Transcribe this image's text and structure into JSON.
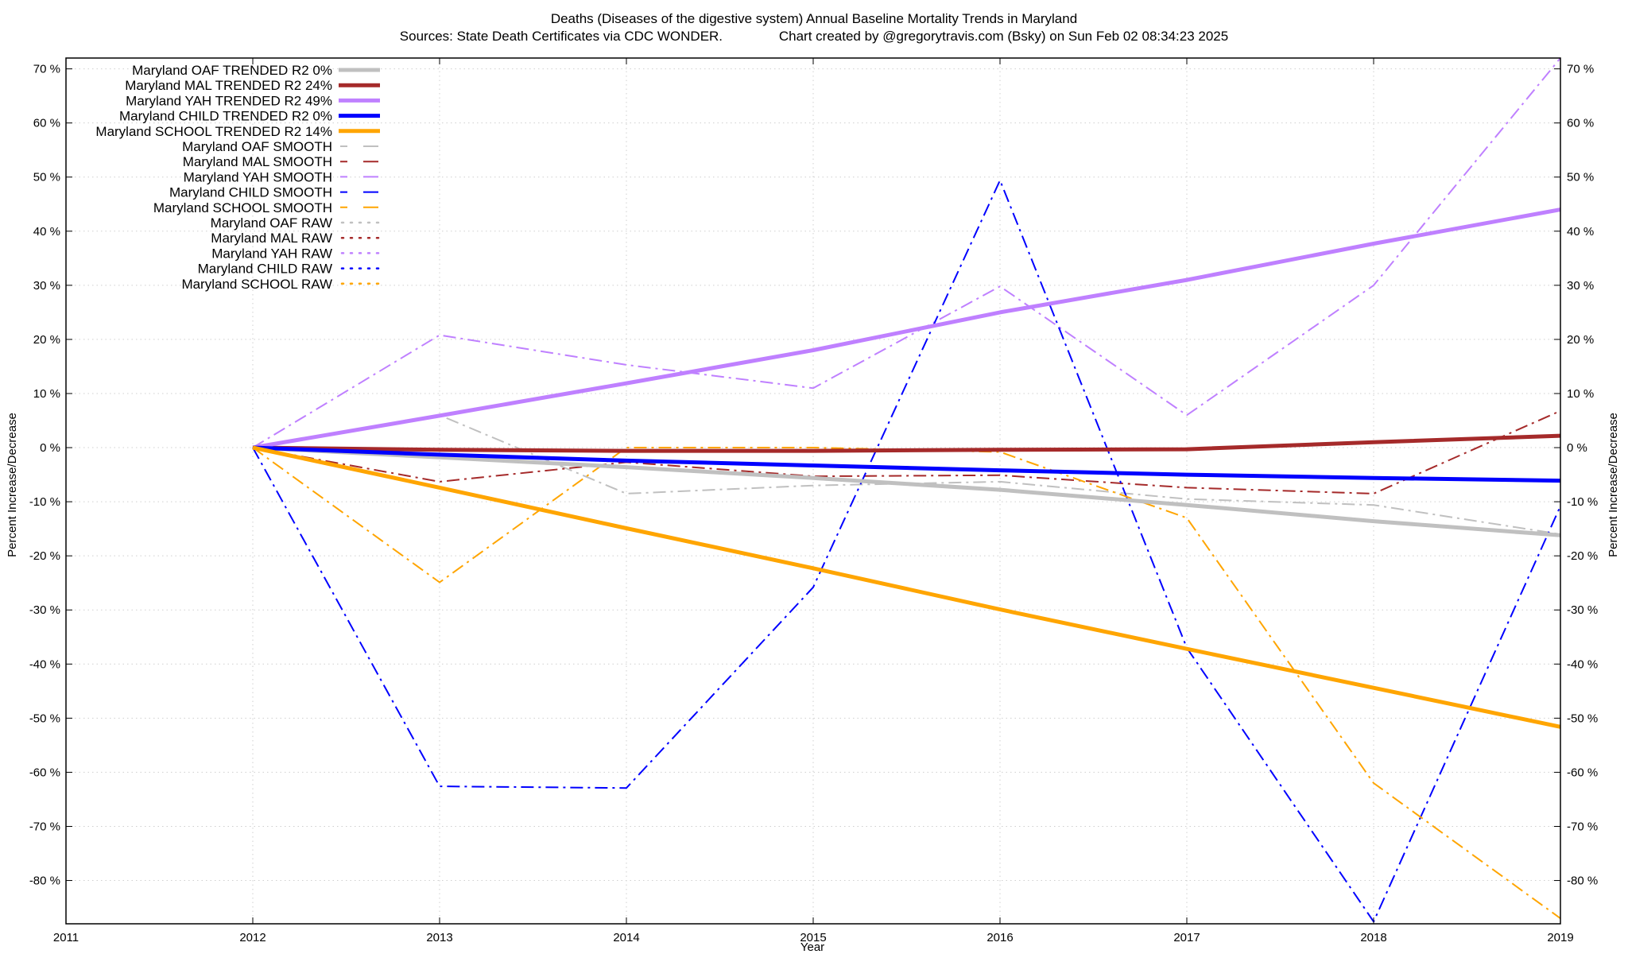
{
  "chart_data": {
    "type": "line",
    "title": "Deaths (Diseases of the digestive system)  Annual Baseline Mortality Trends in Maryland",
    "subtitle": "Sources: State Death Certificates via CDC WONDER.               Chart created by @gregorytravis.com (Bsky) on Sun Feb 02 08:34:23 2025",
    "xlabel": "Year",
    "ylabel": "Percent Increase/Decrease",
    "y2label": "Percent Increase/Decrease",
    "xlim": [
      2011,
      2019
    ],
    "ylim": [
      -88,
      72
    ],
    "x_ticks": [
      2011,
      2012,
      2013,
      2014,
      2015,
      2016,
      2017,
      2018,
      2019
    ],
    "x_tick_labels": [
      "2011",
      "2012",
      "2013",
      "2014",
      "2015",
      "2016",
      "2017",
      "2018",
      "2019"
    ],
    "y_ticks": [
      70,
      60,
      50,
      40,
      30,
      20,
      10,
      0,
      -10,
      -20,
      -30,
      -40,
      -50,
      -60,
      -70,
      -80
    ],
    "y_tick_labels": [
      "70 %",
      "60 %",
      "50 %",
      "40 %",
      "30 %",
      "20 %",
      "10 %",
      "0 %",
      "-10 %",
      "-20 %",
      "-30 %",
      "-40 %",
      "-50 %",
      "-60 %",
      "-70 %",
      "-80 %"
    ],
    "grid": true,
    "legend_position": "top-left",
    "series": [
      {
        "name": "Maryland OAF TRENDED R2  0%",
        "style": "solid",
        "color": "#c0c0c0",
        "x": [
          2012,
          2013,
          2014,
          2015,
          2016,
          2017,
          2018,
          2019
        ],
        "y": [
          0,
          -1.8,
          -3.6,
          -5.6,
          -7.8,
          -10.6,
          -13.6,
          -16.2
        ]
      },
      {
        "name": "Maryland MAL TRENDED R2  24%",
        "style": "solid",
        "color": "#a52a2a",
        "x": [
          2012,
          2013,
          2014,
          2015,
          2016,
          2017,
          2018,
          2019
        ],
        "y": [
          0,
          -0.4,
          -0.6,
          -0.6,
          -0.4,
          -0.3,
          1.0,
          2.2
        ]
      },
      {
        "name": "Maryland YAH TRENDED R2  49%",
        "style": "solid",
        "color": "#bf80ff",
        "x": [
          2012,
          2013,
          2014,
          2015,
          2016,
          2017,
          2018,
          2019
        ],
        "y": [
          0,
          5.9,
          11.9,
          18.0,
          25.0,
          31.0,
          37.7,
          44.0
        ]
      },
      {
        "name": "Maryland CHILD TRENDED R2  0%",
        "style": "solid",
        "color": "#0000ff",
        "x": [
          2012,
          2013,
          2014,
          2015,
          2016,
          2017,
          2018,
          2019
        ],
        "y": [
          0,
          -1.3,
          -2.4,
          -3.3,
          -4.2,
          -5.0,
          -5.6,
          -6.1
        ]
      },
      {
        "name": "Maryland SCHOOL TRENDED R2  14%",
        "style": "solid",
        "color": "#ffa500",
        "x": [
          2012,
          2013,
          2014,
          2015,
          2016,
          2017,
          2018,
          2019
        ],
        "y": [
          0,
          -7.4,
          -14.9,
          -22.3,
          -29.9,
          -37.2,
          -44.4,
          -51.6
        ]
      },
      {
        "name": "Maryland OAF SMOOTH",
        "style": "dash",
        "color": "#c0c0c0",
        "x": [
          2012,
          2013,
          2014,
          2015,
          2016,
          2017,
          2018,
          2019
        ],
        "y": [
          0,
          6.0,
          -8.5,
          -7.0,
          -6.3,
          -9.5,
          -10.6,
          -16.0
        ]
      },
      {
        "name": "Maryland MAL SMOOTH",
        "style": "dash",
        "color": "#a52a2a",
        "x": [
          2012,
          2013,
          2014,
          2015,
          2016,
          2017,
          2018,
          2019
        ],
        "y": [
          0,
          -6.3,
          -2.7,
          -5.3,
          -5.1,
          -7.4,
          -8.5,
          6.8
        ]
      },
      {
        "name": "Maryland YAH SMOOTH",
        "style": "dash",
        "color": "#bf80ff",
        "x": [
          2012,
          2013,
          2014,
          2015,
          2016,
          2017,
          2018,
          2019
        ],
        "y": [
          0,
          20.8,
          15.3,
          11.0,
          29.8,
          6.0,
          30.0,
          72.0
        ]
      },
      {
        "name": "Maryland CHILD SMOOTH",
        "style": "dash",
        "color": "#0000ff",
        "x": [
          2012,
          2013,
          2014,
          2015,
          2016,
          2017,
          2018,
          2019
        ],
        "y": [
          0,
          -62.6,
          -62.9,
          -25.8,
          49.4,
          -37.0,
          -87.6,
          -10.8
        ]
      },
      {
        "name": "Maryland SCHOOL SMOOTH",
        "style": "dash",
        "color": "#ffa500",
        "x": [
          2012,
          2013,
          2014,
          2015,
          2016,
          2017,
          2018,
          2019
        ],
        "y": [
          0,
          -24.9,
          0.0,
          0.0,
          -0.8,
          -13.0,
          -62.0,
          -87.0
        ]
      },
      {
        "name": "Maryland OAF RAW",
        "style": "dot",
        "color": "#c0c0c0",
        "x": [],
        "y": []
      },
      {
        "name": "Maryland MAL RAW",
        "style": "dot",
        "color": "#a52a2a",
        "x": [],
        "y": []
      },
      {
        "name": "Maryland YAH RAW",
        "style": "dot",
        "color": "#bf80ff",
        "x": [],
        "y": []
      },
      {
        "name": "Maryland CHILD RAW",
        "style": "dot",
        "color": "#0000ff",
        "x": [],
        "y": []
      },
      {
        "name": "Maryland SCHOOL RAW",
        "style": "dot",
        "color": "#ffa500",
        "x": [],
        "y": []
      }
    ]
  }
}
